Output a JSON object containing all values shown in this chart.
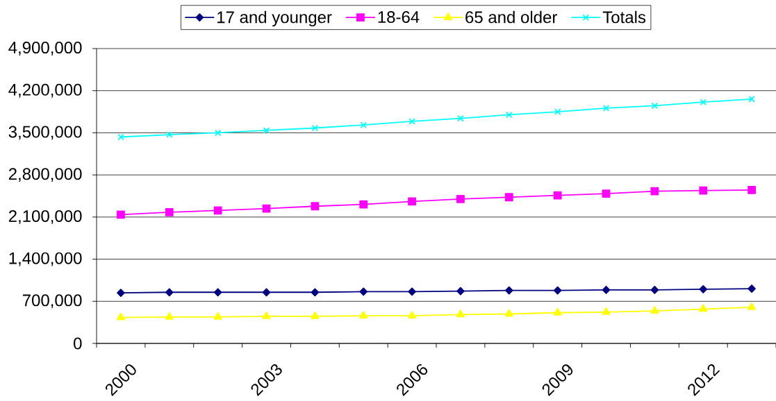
{
  "chart_data": {
    "type": "line",
    "categories": [
      "2000",
      null,
      null,
      "2003",
      null,
      null,
      "2006",
      null,
      null,
      "2009",
      null,
      null,
      "2012",
      null
    ],
    "series": [
      {
        "name": "17 and younger",
        "color": "#000080",
        "marker": "diamond",
        "values": [
          840000,
          850000,
          850000,
          850000,
          850000,
          860000,
          860000,
          870000,
          880000,
          880000,
          890000,
          890000,
          900000,
          910000
        ]
      },
      {
        "name": "18-64",
        "color": "#ff00ff",
        "marker": "square",
        "values": [
          2140000,
          2180000,
          2210000,
          2240000,
          2280000,
          2310000,
          2360000,
          2400000,
          2430000,
          2460000,
          2490000,
          2530000,
          2540000,
          2550000
        ]
      },
      {
        "name": "65 and older",
        "color": "#ffff00",
        "marker": "triangle",
        "values": [
          430000,
          440000,
          440000,
          450000,
          450000,
          460000,
          460000,
          480000,
          490000,
          510000,
          520000,
          540000,
          570000,
          600000
        ]
      },
      {
        "name": "Totals",
        "color": "#00ffff",
        "marker": "cross",
        "values": [
          3430000,
          3470000,
          3500000,
          3540000,
          3580000,
          3630000,
          3690000,
          3740000,
          3800000,
          3850000,
          3910000,
          3950000,
          4010000,
          4060000
        ]
      }
    ],
    "ylim": [
      0,
      4900000
    ],
    "yticks": [
      0,
      {
        "value": 700000,
        "label": "700,000"
      },
      {
        "value": 1400000,
        "label": "1,400,000"
      },
      {
        "value": 2100000,
        "label": "2,100,000"
      },
      {
        "value": 2800000,
        "label": "2,800,000"
      },
      {
        "value": 3500000,
        "label": "3,500,000"
      },
      {
        "value": 4200000,
        "label": "4,200,000"
      },
      {
        "value": 4900000,
        "label": "4,900,000"
      }
    ],
    "grid": "y",
    "legend": "top",
    "line_style": "solid"
  }
}
